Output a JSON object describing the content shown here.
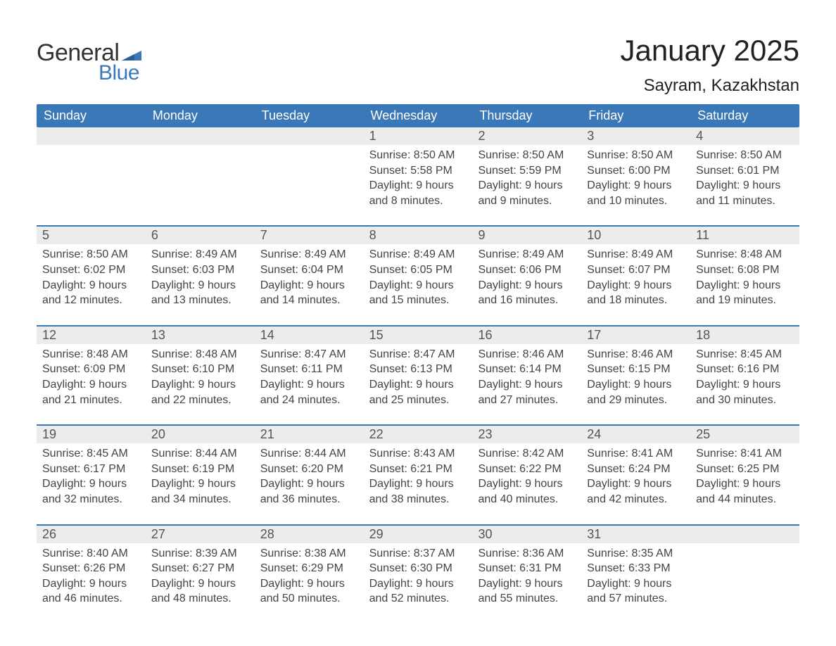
{
  "logo": {
    "general": "General",
    "blue": "Blue",
    "accent_color": "#3b78b8"
  },
  "title": "January 2025",
  "location": "Sayram, Kazakhstan",
  "weekdays": [
    "Sunday",
    "Monday",
    "Tuesday",
    "Wednesday",
    "Thursday",
    "Friday",
    "Saturday"
  ],
  "colors": {
    "header_bg": "#3b78b8",
    "header_text": "#ffffff",
    "daynum_bg": "#ececec",
    "daynum_text": "#555555",
    "body_text": "#444444",
    "rule": "#3b78b8",
    "page_bg": "#ffffff"
  },
  "fonts": {
    "title_size_pt": 42,
    "location_size_pt": 24,
    "weekday_size_pt": 18,
    "daynum_size_pt": 18,
    "body_size_pt": 16
  },
  "weeks": [
    [
      {
        "n": "",
        "sunrise": "",
        "sunset": "",
        "daylight": ""
      },
      {
        "n": "",
        "sunrise": "",
        "sunset": "",
        "daylight": ""
      },
      {
        "n": "",
        "sunrise": "",
        "sunset": "",
        "daylight": ""
      },
      {
        "n": "1",
        "sunrise": "Sunrise: 8:50 AM",
        "sunset": "Sunset: 5:58 PM",
        "daylight": "Daylight: 9 hours and 8 minutes."
      },
      {
        "n": "2",
        "sunrise": "Sunrise: 8:50 AM",
        "sunset": "Sunset: 5:59 PM",
        "daylight": "Daylight: 9 hours and 9 minutes."
      },
      {
        "n": "3",
        "sunrise": "Sunrise: 8:50 AM",
        "sunset": "Sunset: 6:00 PM",
        "daylight": "Daylight: 9 hours and 10 minutes."
      },
      {
        "n": "4",
        "sunrise": "Sunrise: 8:50 AM",
        "sunset": "Sunset: 6:01 PM",
        "daylight": "Daylight: 9 hours and 11 minutes."
      }
    ],
    [
      {
        "n": "5",
        "sunrise": "Sunrise: 8:50 AM",
        "sunset": "Sunset: 6:02 PM",
        "daylight": "Daylight: 9 hours and 12 minutes."
      },
      {
        "n": "6",
        "sunrise": "Sunrise: 8:49 AM",
        "sunset": "Sunset: 6:03 PM",
        "daylight": "Daylight: 9 hours and 13 minutes."
      },
      {
        "n": "7",
        "sunrise": "Sunrise: 8:49 AM",
        "sunset": "Sunset: 6:04 PM",
        "daylight": "Daylight: 9 hours and 14 minutes."
      },
      {
        "n": "8",
        "sunrise": "Sunrise: 8:49 AM",
        "sunset": "Sunset: 6:05 PM",
        "daylight": "Daylight: 9 hours and 15 minutes."
      },
      {
        "n": "9",
        "sunrise": "Sunrise: 8:49 AM",
        "sunset": "Sunset: 6:06 PM",
        "daylight": "Daylight: 9 hours and 16 minutes."
      },
      {
        "n": "10",
        "sunrise": "Sunrise: 8:49 AM",
        "sunset": "Sunset: 6:07 PM",
        "daylight": "Daylight: 9 hours and 18 minutes."
      },
      {
        "n": "11",
        "sunrise": "Sunrise: 8:48 AM",
        "sunset": "Sunset: 6:08 PM",
        "daylight": "Daylight: 9 hours and 19 minutes."
      }
    ],
    [
      {
        "n": "12",
        "sunrise": "Sunrise: 8:48 AM",
        "sunset": "Sunset: 6:09 PM",
        "daylight": "Daylight: 9 hours and 21 minutes."
      },
      {
        "n": "13",
        "sunrise": "Sunrise: 8:48 AM",
        "sunset": "Sunset: 6:10 PM",
        "daylight": "Daylight: 9 hours and 22 minutes."
      },
      {
        "n": "14",
        "sunrise": "Sunrise: 8:47 AM",
        "sunset": "Sunset: 6:11 PM",
        "daylight": "Daylight: 9 hours and 24 minutes."
      },
      {
        "n": "15",
        "sunrise": "Sunrise: 8:47 AM",
        "sunset": "Sunset: 6:13 PM",
        "daylight": "Daylight: 9 hours and 25 minutes."
      },
      {
        "n": "16",
        "sunrise": "Sunrise: 8:46 AM",
        "sunset": "Sunset: 6:14 PM",
        "daylight": "Daylight: 9 hours and 27 minutes."
      },
      {
        "n": "17",
        "sunrise": "Sunrise: 8:46 AM",
        "sunset": "Sunset: 6:15 PM",
        "daylight": "Daylight: 9 hours and 29 minutes."
      },
      {
        "n": "18",
        "sunrise": "Sunrise: 8:45 AM",
        "sunset": "Sunset: 6:16 PM",
        "daylight": "Daylight: 9 hours and 30 minutes."
      }
    ],
    [
      {
        "n": "19",
        "sunrise": "Sunrise: 8:45 AM",
        "sunset": "Sunset: 6:17 PM",
        "daylight": "Daylight: 9 hours and 32 minutes."
      },
      {
        "n": "20",
        "sunrise": "Sunrise: 8:44 AM",
        "sunset": "Sunset: 6:19 PM",
        "daylight": "Daylight: 9 hours and 34 minutes."
      },
      {
        "n": "21",
        "sunrise": "Sunrise: 8:44 AM",
        "sunset": "Sunset: 6:20 PM",
        "daylight": "Daylight: 9 hours and 36 minutes."
      },
      {
        "n": "22",
        "sunrise": "Sunrise: 8:43 AM",
        "sunset": "Sunset: 6:21 PM",
        "daylight": "Daylight: 9 hours and 38 minutes."
      },
      {
        "n": "23",
        "sunrise": "Sunrise: 8:42 AM",
        "sunset": "Sunset: 6:22 PM",
        "daylight": "Daylight: 9 hours and 40 minutes."
      },
      {
        "n": "24",
        "sunrise": "Sunrise: 8:41 AM",
        "sunset": "Sunset: 6:24 PM",
        "daylight": "Daylight: 9 hours and 42 minutes."
      },
      {
        "n": "25",
        "sunrise": "Sunrise: 8:41 AM",
        "sunset": "Sunset: 6:25 PM",
        "daylight": "Daylight: 9 hours and 44 minutes."
      }
    ],
    [
      {
        "n": "26",
        "sunrise": "Sunrise: 8:40 AM",
        "sunset": "Sunset: 6:26 PM",
        "daylight": "Daylight: 9 hours and 46 minutes."
      },
      {
        "n": "27",
        "sunrise": "Sunrise: 8:39 AM",
        "sunset": "Sunset: 6:27 PM",
        "daylight": "Daylight: 9 hours and 48 minutes."
      },
      {
        "n": "28",
        "sunrise": "Sunrise: 8:38 AM",
        "sunset": "Sunset: 6:29 PM",
        "daylight": "Daylight: 9 hours and 50 minutes."
      },
      {
        "n": "29",
        "sunrise": "Sunrise: 8:37 AM",
        "sunset": "Sunset: 6:30 PM",
        "daylight": "Daylight: 9 hours and 52 minutes."
      },
      {
        "n": "30",
        "sunrise": "Sunrise: 8:36 AM",
        "sunset": "Sunset: 6:31 PM",
        "daylight": "Daylight: 9 hours and 55 minutes."
      },
      {
        "n": "31",
        "sunrise": "Sunrise: 8:35 AM",
        "sunset": "Sunset: 6:33 PM",
        "daylight": "Daylight: 9 hours and 57 minutes."
      },
      {
        "n": "",
        "sunrise": "",
        "sunset": "",
        "daylight": ""
      }
    ]
  ]
}
